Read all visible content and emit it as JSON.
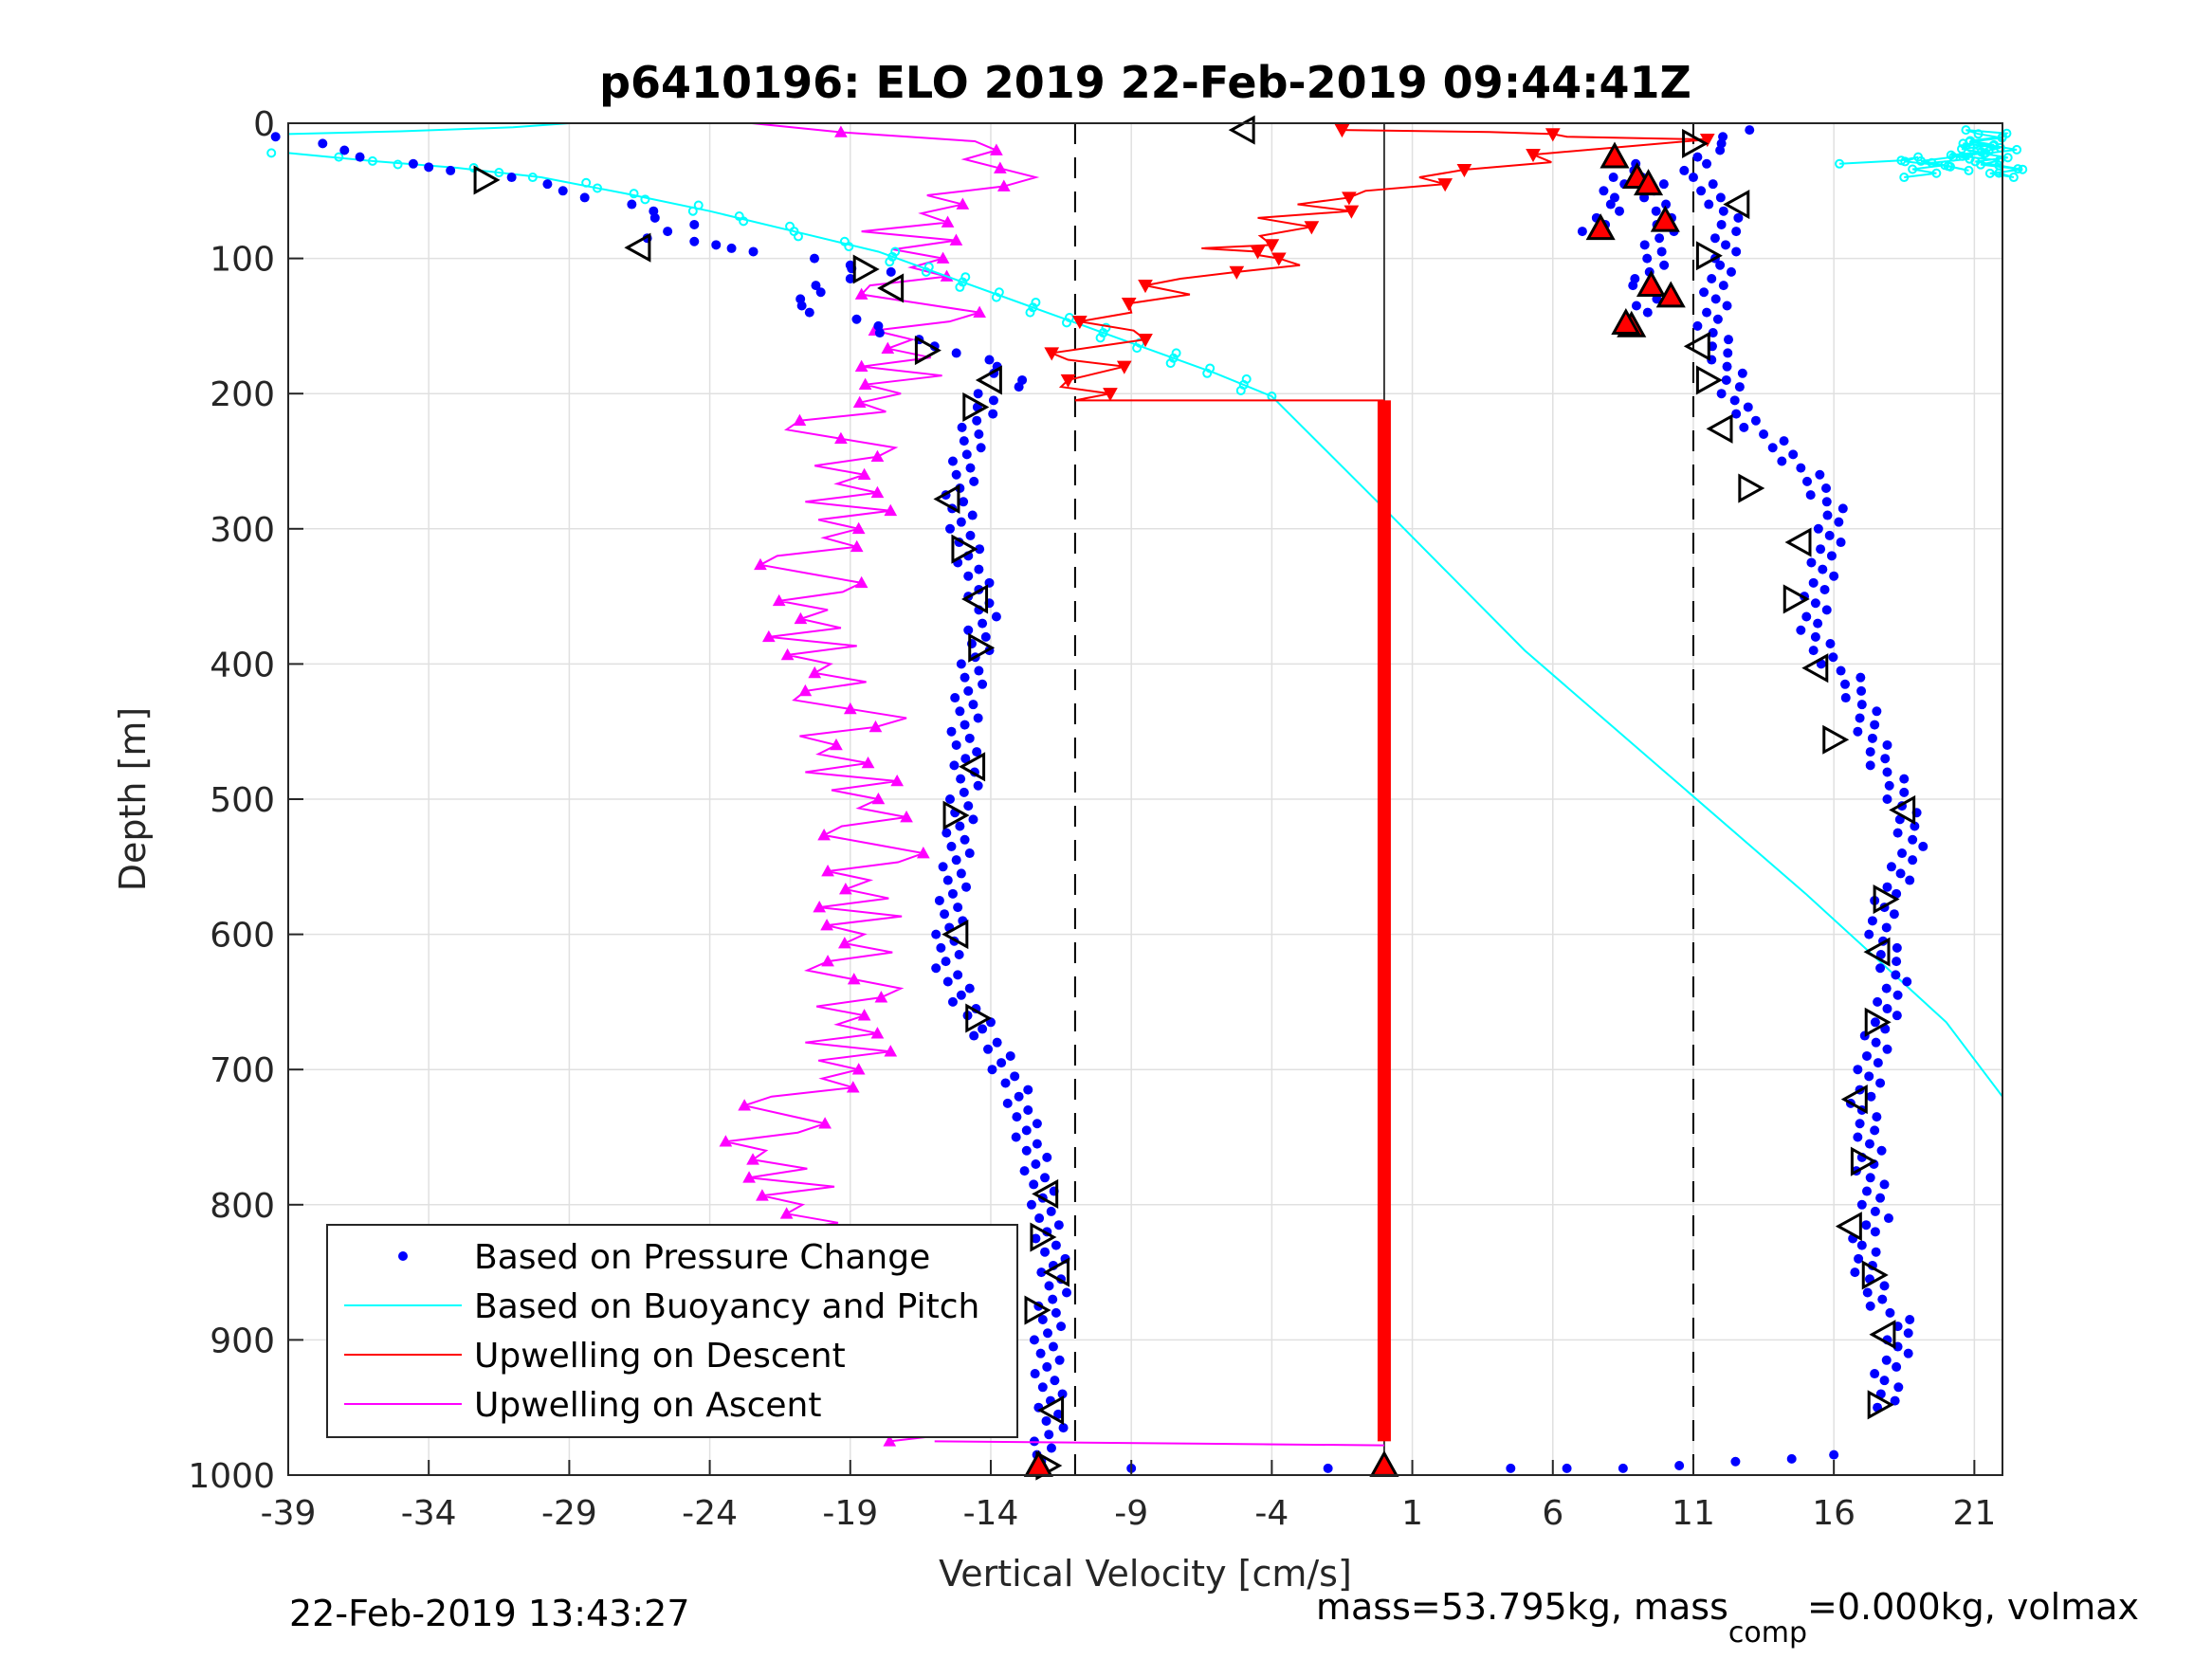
{
  "chart_data": {
    "type": "scatter",
    "title": "p6410196: ELO 2019 22-Feb-2019 09:44:41Z",
    "xlabel": "Vertical Velocity [cm/s]",
    "ylabel": "Depth [m]",
    "xlim": [
      -39,
      22
    ],
    "ylim": [
      0,
      1000
    ],
    "y_reversed": true,
    "xticks": [
      "-39",
      "-34",
      "-29",
      "-24",
      "-19",
      "-14",
      "-9",
      "-4",
      "1",
      "6",
      "11",
      "16",
      "21"
    ],
    "yticks": [
      "0",
      "100",
      "200",
      "300",
      "400",
      "500",
      "600",
      "700",
      "800",
      "900",
      "1000"
    ],
    "grid": true,
    "legend_position": "bottom-left",
    "reference_lines": {
      "dashed_x": [
        -11,
        11
      ],
      "solid_x": [
        0
      ]
    },
    "series": [
      {
        "name": "Based on Pressure Change",
        "color": "#0000ff",
        "marker": "dot",
        "descent": [
          [
            -14,
            200
          ],
          [
            -14.5,
            220
          ],
          [
            -14.8,
            240
          ],
          [
            -15,
            260
          ],
          [
            -15.2,
            280
          ],
          [
            -15,
            300
          ],
          [
            -14.8,
            320
          ],
          [
            -14.5,
            340
          ],
          [
            -14.2,
            360
          ],
          [
            -14.4,
            380
          ],
          [
            -14.6,
            400
          ],
          [
            -14.8,
            420
          ],
          [
            -14.9,
            440
          ],
          [
            -15,
            460
          ],
          [
            -14.8,
            480
          ],
          [
            -15,
            500
          ],
          [
            -15.1,
            520
          ],
          [
            -15.2,
            540
          ],
          [
            -15.3,
            560
          ],
          [
            -15.4,
            580
          ],
          [
            -15.5,
            600
          ],
          [
            -15.6,
            620
          ],
          [
            -15.2,
            640
          ],
          [
            -14.6,
            660
          ],
          [
            -14,
            680
          ],
          [
            -13.5,
            700
          ],
          [
            -13,
            720
          ],
          [
            -12.8,
            740
          ],
          [
            -12.5,
            760
          ],
          [
            -12.3,
            780
          ],
          [
            -12.1,
            800
          ],
          [
            -12,
            820
          ],
          [
            -11.8,
            840
          ],
          [
            -11.7,
            860
          ],
          [
            -11.9,
            880
          ],
          [
            -12,
            900
          ],
          [
            -12,
            920
          ],
          [
            -11.9,
            940
          ],
          [
            -11.8,
            960
          ],
          [
            -12.2,
            990
          ]
        ],
        "ascent": [
          [
            18,
            950
          ],
          [
            17.8,
            930
          ],
          [
            18.2,
            910
          ],
          [
            18.5,
            890
          ],
          [
            17.5,
            870
          ],
          [
            17.2,
            850
          ],
          [
            17,
            830
          ],
          [
            17.5,
            810
          ],
          [
            17.4,
            790
          ],
          [
            17.2,
            770
          ],
          [
            17.3,
            750
          ],
          [
            17,
            730
          ],
          [
            17.2,
            710
          ],
          [
            17.4,
            690
          ],
          [
            17.6,
            670
          ],
          [
            18,
            650
          ],
          [
            18.2,
            630
          ],
          [
            17.8,
            610
          ],
          [
            17.6,
            590
          ],
          [
            18,
            570
          ],
          [
            18.5,
            550
          ],
          [
            18.8,
            530
          ],
          [
            18.5,
            510
          ],
          [
            18.2,
            490
          ],
          [
            17.6,
            470
          ],
          [
            17.3,
            450
          ],
          [
            17,
            430
          ],
          [
            16.5,
            410
          ],
          [
            15.5,
            390
          ],
          [
            15.2,
            370
          ],
          [
            15.4,
            350
          ],
          [
            15.6,
            330
          ],
          [
            15.8,
            310
          ],
          [
            16,
            290
          ],
          [
            15.5,
            270
          ],
          [
            14.6,
            250
          ],
          [
            13.5,
            230
          ],
          [
            12.5,
            210
          ],
          [
            12.4,
            190
          ],
          [
            12,
            170
          ],
          [
            11.6,
            150
          ],
          [
            11.8,
            130
          ],
          [
            11.9,
            110
          ],
          [
            12,
            100
          ],
          [
            12.3,
            80
          ],
          [
            12,
            60
          ],
          [
            11,
            40
          ],
          [
            11.5,
            20
          ],
          [
            13,
            5
          ]
        ],
        "surface_descent": [
          [
            -39,
            10
          ],
          [
            -37,
            20
          ],
          [
            -35,
            30
          ],
          [
            -33,
            35
          ],
          [
            -30,
            45
          ],
          [
            -28,
            55
          ],
          [
            -26,
            65
          ],
          [
            -25,
            75
          ],
          [
            -26,
            85
          ],
          [
            -24,
            90
          ],
          [
            -22,
            95
          ],
          [
            -19,
            105
          ],
          [
            -18,
            110
          ],
          [
            -20,
            120
          ],
          [
            -21,
            130
          ],
          [
            -20,
            140
          ],
          [
            -18,
            150
          ],
          [
            -17,
            160
          ],
          [
            -15,
            170
          ],
          [
            -14,
            180
          ],
          [
            -13,
            195
          ]
        ],
        "surface_ascent": [
          [
            7.5,
            80
          ],
          [
            8.2,
            55
          ],
          [
            8.5,
            30
          ],
          [
            9.4,
            40
          ],
          [
            10,
            70
          ],
          [
            9.3,
            120
          ],
          [
            9.7,
            130
          ],
          [
            8.6,
            150
          ]
        ],
        "bottom": [
          [
            -9,
            995
          ],
          [
            -2,
            995
          ],
          [
            0,
            995
          ],
          [
            4.5,
            995
          ],
          [
            6.5,
            995
          ],
          [
            8.5,
            995
          ],
          [
            10.5,
            993
          ],
          [
            12.5,
            990
          ],
          [
            14.5,
            988
          ],
          [
            16,
            985
          ]
        ]
      },
      {
        "name": "Based on Buoyancy and Pitch",
        "color": "#00ffff",
        "marker": "circle-line",
        "values": [
          [
            -39,
            22
          ],
          [
            -36,
            28
          ],
          [
            -33,
            33
          ],
          [
            -30,
            40
          ],
          [
            -27,
            52
          ],
          [
            -24,
            65
          ],
          [
            -21,
            80
          ],
          [
            -18,
            95
          ],
          [
            -16,
            110
          ],
          [
            -14,
            125
          ],
          [
            -12,
            140
          ],
          [
            -10,
            155
          ],
          [
            -8,
            170
          ],
          [
            -6,
            185
          ],
          [
            -4,
            202
          ],
          [
            0,
            285
          ],
          [
            5,
            390
          ],
          [
            10,
            480
          ],
          [
            15,
            570
          ],
          [
            20,
            665
          ],
          [
            22,
            720
          ]
        ],
        "surface": [
          [
            -39,
            8
          ],
          [
            -35,
            6
          ],
          [
            -31,
            3
          ],
          [
            -29,
            0
          ],
          [
            17,
            30
          ],
          [
            19,
            25
          ],
          [
            20,
            35
          ],
          [
            21,
            15
          ],
          [
            22,
            40
          ],
          [
            21.5,
            5
          ],
          [
            22,
            10
          ],
          [
            18.5,
            40
          ]
        ]
      },
      {
        "name": "Upwelling on Descent",
        "color": "#ff0000",
        "marker": "triangle-down",
        "values": [
          [
            0,
            5
          ],
          [
            6,
            8
          ],
          [
            10,
            12
          ],
          [
            2,
            40
          ],
          [
            -2,
            55
          ],
          [
            -3,
            70
          ],
          [
            -4,
            90
          ],
          [
            -6,
            95
          ],
          [
            -3,
            100
          ],
          [
            -6,
            110
          ],
          [
            -7,
            120
          ],
          [
            -9,
            140
          ],
          [
            -10,
            160
          ],
          [
            -10.5,
            175
          ],
          [
            -11,
            185
          ],
          [
            -10,
            195
          ],
          [
            -11,
            205
          ],
          [
            0,
            205
          ],
          [
            0,
            975
          ]
        ]
      },
      {
        "name": "Upwelling on Ascent",
        "color": "#ff00ff",
        "marker": "triangle-up",
        "values": [
          [
            -16,
            975
          ],
          [
            -17,
            960
          ],
          [
            -18,
            940
          ],
          [
            -19.5,
            920
          ],
          [
            -20,
            900
          ],
          [
            -19,
            880
          ],
          [
            -20,
            860
          ],
          [
            -20.5,
            840
          ],
          [
            -20.8,
            820
          ],
          [
            -21.5,
            800
          ],
          [
            -21,
            780
          ],
          [
            -22,
            760
          ],
          [
            -21.5,
            740
          ],
          [
            -21,
            720
          ],
          [
            -19.5,
            700
          ],
          [
            -19,
            680
          ],
          [
            -18.5,
            660
          ],
          [
            -18.8,
            640
          ],
          [
            -19,
            620
          ],
          [
            -19.3,
            600
          ],
          [
            -18.5,
            580
          ],
          [
            -18.3,
            560
          ],
          [
            -18,
            540
          ],
          [
            -18.5,
            520
          ],
          [
            -18.8,
            500
          ],
          [
            -19,
            480
          ],
          [
            -19.5,
            460
          ],
          [
            -18.6,
            440
          ],
          [
            -19.8,
            420
          ],
          [
            -20.5,
            400
          ],
          [
            -20.3,
            380
          ],
          [
            -19.8,
            360
          ],
          [
            -20.2,
            340
          ],
          [
            -20.8,
            320
          ],
          [
            -19.5,
            300
          ],
          [
            -19,
            280
          ],
          [
            -18.5,
            260
          ],
          [
            -19,
            240
          ],
          [
            -20,
            220
          ],
          [
            -18,
            200
          ],
          [
            -17,
            180
          ],
          [
            -16.8,
            160
          ],
          [
            -16,
            140
          ],
          [
            -17.5,
            120
          ],
          [
            -16.5,
            100
          ],
          [
            -17,
            80
          ],
          [
            -15,
            60
          ],
          [
            -14,
            40
          ],
          [
            -13,
            20
          ],
          [
            -22.5,
            0
          ]
        ]
      },
      {
        "name": "markers",
        "color": "#000000",
        "marker": "triangle-outline",
        "values": [
          [
            -32,
            42
          ],
          [
            -26.5,
            92
          ],
          [
            -18.5,
            108
          ],
          [
            -17.5,
            122
          ],
          [
            -16.3,
            168
          ],
          [
            -14,
            190
          ],
          [
            -14.6,
            210
          ],
          [
            -15.5,
            278
          ],
          [
            -15,
            315
          ],
          [
            -14.5,
            352
          ],
          [
            -14.4,
            388
          ],
          [
            -14.6,
            476
          ],
          [
            -15.3,
            512
          ],
          [
            -15.2,
            600
          ],
          [
            -14.5,
            662
          ],
          [
            -12,
            792
          ],
          [
            -12.2,
            824
          ],
          [
            -11.6,
            850
          ],
          [
            -12.4,
            878
          ],
          [
            -11.8,
            952
          ],
          [
            -12,
            993
          ],
          [
            -5,
            5
          ],
          [
            11,
            15
          ],
          [
            12.6,
            60
          ],
          [
            11.5,
            98
          ],
          [
            11.2,
            165
          ],
          [
            11.5,
            190
          ],
          [
            12,
            226
          ],
          [
            13,
            270
          ],
          [
            14.8,
            310
          ],
          [
            14.6,
            352
          ],
          [
            15.4,
            403
          ],
          [
            16,
            456
          ],
          [
            18.5,
            508
          ],
          [
            17.8,
            574
          ],
          [
            17.6,
            613
          ],
          [
            17.5,
            665
          ],
          [
            16.8,
            722
          ],
          [
            17,
            768
          ],
          [
            16.6,
            816
          ],
          [
            17.4,
            852
          ],
          [
            17.8,
            896
          ],
          [
            17.6,
            948
          ]
        ]
      },
      {
        "name": "red-markers",
        "color": "#ff0000",
        "marker": "triangle-up-filled",
        "values": [
          [
            8.2,
            25
          ],
          [
            9,
            40
          ],
          [
            9.4,
            45
          ],
          [
            10,
            72
          ],
          [
            7.7,
            78
          ],
          [
            9.5,
            120
          ],
          [
            10.2,
            128
          ],
          [
            8.8,
            150
          ],
          [
            8.6,
            148
          ],
          [
            -12.3,
            993
          ],
          [
            0,
            993
          ]
        ]
      }
    ]
  },
  "legend": [
    {
      "label": "Based on Pressure Change",
      "color": "#0000ff",
      "kind": "dot"
    },
    {
      "label": "Based on Buoyancy and Pitch",
      "color": "#00ffff",
      "kind": "line"
    },
    {
      "label": "Upwelling on Descent",
      "color": "#ff0000",
      "kind": "line"
    },
    {
      "label": "Upwelling on Ascent",
      "color": "#ff00ff",
      "kind": "line"
    }
  ],
  "footer": {
    "left_timestamp": "22-Feb-2019 13:43:27",
    "right_text_pre": "mass=53.795kg, mass",
    "right_text_sub": "comp",
    "right_text_post": "=0.000kg, volmax"
  }
}
